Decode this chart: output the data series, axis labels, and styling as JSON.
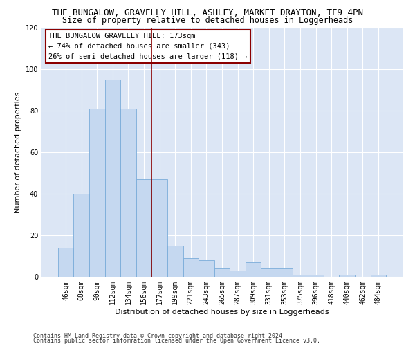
{
  "title": "THE BUNGALOW, GRAVELLY HILL, ASHLEY, MARKET DRAYTON, TF9 4PN",
  "subtitle": "Size of property relative to detached houses in Loggerheads",
  "xlabel": "Distribution of detached houses by size in Loggerheads",
  "ylabel": "Number of detached properties",
  "categories": [
    "46sqm",
    "68sqm",
    "90sqm",
    "112sqm",
    "134sqm",
    "156sqm",
    "177sqm",
    "199sqm",
    "221sqm",
    "243sqm",
    "265sqm",
    "287sqm",
    "309sqm",
    "331sqm",
    "353sqm",
    "375sqm",
    "396sqm",
    "418sqm",
    "440sqm",
    "462sqm",
    "484sqm"
  ],
  "values": [
    14,
    40,
    81,
    95,
    81,
    47,
    47,
    15,
    9,
    8,
    4,
    3,
    7,
    4,
    4,
    1,
    1,
    0,
    1,
    0,
    1
  ],
  "bar_color": "#c5d8f0",
  "bar_edge_color": "#7aacda",
  "vline_x_index": 6,
  "vline_color": "#8b0000",
  "ylim": [
    0,
    120
  ],
  "yticks": [
    0,
    20,
    40,
    60,
    80,
    100,
    120
  ],
  "annotation_title": "THE BUNGALOW GRAVELLY HILL: 173sqm",
  "annotation_line1": "← 74% of detached houses are smaller (343)",
  "annotation_line2": "26% of semi-detached houses are larger (118) →",
  "annotation_box_color": "#ffffff",
  "annotation_box_edge": "#8b0000",
  "footnote1": "Contains HM Land Registry data © Crown copyright and database right 2024.",
  "footnote2": "Contains public sector information licensed under the Open Government Licence v3.0.",
  "fig_bg_color": "#ffffff",
  "bg_color": "#dce6f5",
  "grid_color": "#ffffff",
  "title_fontsize": 9,
  "subtitle_fontsize": 8.5,
  "axis_label_fontsize": 8,
  "tick_fontsize": 7,
  "annotation_fontsize": 7.5,
  "footnote_fontsize": 6
}
